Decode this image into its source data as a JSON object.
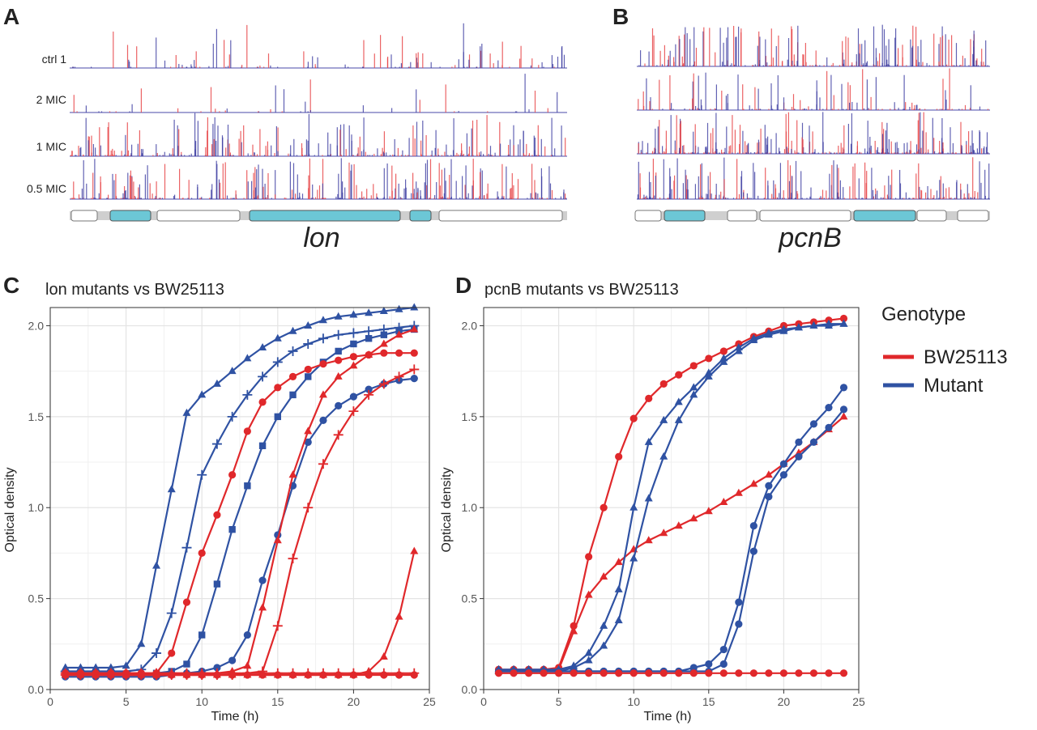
{
  "panels": {
    "A": {
      "letter": "A",
      "gene": "lon",
      "tracks": [
        "ctrl 1",
        "2 MIC",
        "1 MIC",
        "0.5 MIC"
      ]
    },
    "B": {
      "letter": "B",
      "gene": "pcnB"
    },
    "C": {
      "letter": "C"
    },
    "D": {
      "letter": "D"
    }
  },
  "legend": {
    "title": "Genotype",
    "items": [
      {
        "label": "BW25113",
        "color": "#e0282b"
      },
      {
        "label": "Mutant",
        "color": "#2f52a3"
      }
    ]
  },
  "colors": {
    "red": "#e0282b",
    "blue": "#2f52a3",
    "annotation_fill": "#6cc7d6"
  },
  "chart_data": [
    {
      "id": "C",
      "type": "line",
      "title": "lon mutants vs BW25113",
      "xlabel": "Time (h)",
      "ylabel": "Optical density",
      "xlim": [
        0,
        25
      ],
      "ylim": [
        0,
        2.1
      ],
      "xticks": [
        0,
        5,
        10,
        15,
        20,
        25
      ],
      "yticks": [
        0.0,
        0.5,
        1.0,
        1.5,
        2.0
      ],
      "x": [
        1,
        2,
        3,
        4,
        5,
        6,
        7,
        8,
        9,
        10,
        11,
        12,
        13,
        14,
        15,
        16,
        17,
        18,
        19,
        20,
        21,
        22,
        23,
        24
      ],
      "series": [
        {
          "genotype": "Mutant",
          "marker": "triangle",
          "values": [
            0.12,
            0.12,
            0.12,
            0.12,
            0.13,
            0.25,
            0.68,
            1.1,
            1.52,
            1.62,
            1.68,
            1.75,
            1.82,
            1.88,
            1.93,
            1.97,
            2.0,
            2.03,
            2.05,
            2.06,
            2.07,
            2.08,
            2.09,
            2.1
          ]
        },
        {
          "genotype": "Mutant",
          "marker": "cross",
          "values": [
            0.1,
            0.1,
            0.1,
            0.1,
            0.1,
            0.11,
            0.2,
            0.42,
            0.78,
            1.18,
            1.35,
            1.5,
            1.62,
            1.72,
            1.8,
            1.86,
            1.9,
            1.93,
            1.95,
            1.96,
            1.97,
            1.98,
            1.99,
            2.0
          ]
        },
        {
          "genotype": "Mutant",
          "marker": "square",
          "values": [
            0.08,
            0.08,
            0.08,
            0.08,
            0.08,
            0.08,
            0.09,
            0.1,
            0.14,
            0.3,
            0.58,
            0.88,
            1.12,
            1.34,
            1.5,
            1.62,
            1.72,
            1.8,
            1.86,
            1.9,
            1.93,
            1.95,
            1.97,
            1.98
          ]
        },
        {
          "genotype": "Mutant",
          "marker": "circle",
          "values": [
            0.07,
            0.07,
            0.07,
            0.07,
            0.07,
            0.07,
            0.07,
            0.08,
            0.09,
            0.1,
            0.12,
            0.16,
            0.3,
            0.6,
            0.85,
            1.12,
            1.36,
            1.48,
            1.56,
            1.61,
            1.65,
            1.68,
            1.7,
            1.71
          ]
        },
        {
          "genotype": "BW25113",
          "marker": "circle",
          "values": [
            0.09,
            0.09,
            0.09,
            0.09,
            0.09,
            0.09,
            0.09,
            0.2,
            0.48,
            0.75,
            0.96,
            1.18,
            1.42,
            1.58,
            1.66,
            1.72,
            1.76,
            1.79,
            1.81,
            1.83,
            1.84,
            1.85,
            1.85,
            1.85
          ]
        },
        {
          "genotype": "BW25113",
          "marker": "triangle",
          "values": [
            0.09,
            0.09,
            0.09,
            0.09,
            0.09,
            0.09,
            0.09,
            0.09,
            0.09,
            0.09,
            0.09,
            0.1,
            0.13,
            0.45,
            0.82,
            1.18,
            1.42,
            1.62,
            1.72,
            1.78,
            1.84,
            1.9,
            1.95,
            1.98
          ]
        },
        {
          "genotype": "BW25113",
          "marker": "cross",
          "values": [
            0.08,
            0.08,
            0.08,
            0.08,
            0.08,
            0.08,
            0.08,
            0.08,
            0.08,
            0.08,
            0.08,
            0.08,
            0.09,
            0.1,
            0.35,
            0.72,
            1.0,
            1.24,
            1.4,
            1.53,
            1.62,
            1.68,
            1.72,
            1.76
          ]
        },
        {
          "genotype": "BW25113",
          "marker": "triangle",
          "values": [
            0.08,
            0.08,
            0.08,
            0.08,
            0.08,
            0.08,
            0.08,
            0.08,
            0.08,
            0.08,
            0.08,
            0.08,
            0.08,
            0.08,
            0.08,
            0.08,
            0.08,
            0.08,
            0.08,
            0.08,
            0.1,
            0.18,
            0.4,
            0.76
          ]
        },
        {
          "genotype": "BW25113",
          "marker": "cross",
          "values": [
            0.09,
            0.09,
            0.09,
            0.09,
            0.09,
            0.09,
            0.09,
            0.09,
            0.09,
            0.09,
            0.09,
            0.09,
            0.09,
            0.09,
            0.09,
            0.09,
            0.09,
            0.09,
            0.09,
            0.09,
            0.09,
            0.09,
            0.09,
            0.09
          ]
        },
        {
          "genotype": "BW25113",
          "marker": "circle",
          "values": [
            0.08,
            0.08,
            0.08,
            0.08,
            0.08,
            0.08,
            0.08,
            0.08,
            0.08,
            0.08,
            0.08,
            0.08,
            0.08,
            0.08,
            0.08,
            0.08,
            0.08,
            0.08,
            0.08,
            0.08,
            0.08,
            0.08,
            0.08,
            0.08
          ]
        }
      ]
    },
    {
      "id": "D",
      "type": "line",
      "title": "pcnB mutants vs BW25113",
      "xlabel": "Time (h)",
      "ylabel": "Optical density",
      "xlim": [
        0,
        25
      ],
      "ylim": [
        0,
        2.1
      ],
      "xticks": [
        0,
        5,
        10,
        15,
        20,
        25
      ],
      "yticks": [
        0.0,
        0.5,
        1.0,
        1.5,
        2.0
      ],
      "x": [
        1,
        2,
        3,
        4,
        5,
        6,
        7,
        8,
        9,
        10,
        11,
        12,
        13,
        14,
        15,
        16,
        17,
        18,
        19,
        20,
        21,
        22,
        23,
        24
      ],
      "series": [
        {
          "genotype": "BW25113",
          "marker": "circle",
          "values": [
            0.11,
            0.11,
            0.11,
            0.11,
            0.12,
            0.35,
            0.73,
            1.0,
            1.28,
            1.49,
            1.6,
            1.68,
            1.73,
            1.78,
            1.82,
            1.86,
            1.9,
            1.94,
            1.97,
            2.0,
            2.01,
            2.02,
            2.03,
            2.04
          ]
        },
        {
          "genotype": "BW25113",
          "marker": "triangle",
          "values": [
            0.1,
            0.1,
            0.1,
            0.1,
            0.11,
            0.32,
            0.52,
            0.62,
            0.7,
            0.77,
            0.82,
            0.86,
            0.9,
            0.94,
            0.98,
            1.03,
            1.08,
            1.13,
            1.18,
            1.24,
            1.3,
            1.36,
            1.43,
            1.5
          ]
        },
        {
          "genotype": "Mutant",
          "marker": "triangle",
          "values": [
            0.11,
            0.11,
            0.11,
            0.11,
            0.11,
            0.13,
            0.2,
            0.35,
            0.55,
            1.0,
            1.36,
            1.48,
            1.58,
            1.66,
            1.74,
            1.82,
            1.88,
            1.93,
            1.96,
            1.98,
            1.99,
            2.0,
            2.01,
            2.01
          ]
        },
        {
          "genotype": "Mutant",
          "marker": "triangle",
          "values": [
            0.1,
            0.1,
            0.1,
            0.1,
            0.1,
            0.12,
            0.16,
            0.24,
            0.38,
            0.72,
            1.05,
            1.28,
            1.48,
            1.62,
            1.72,
            1.8,
            1.86,
            1.92,
            1.95,
            1.97,
            1.99,
            2.0,
            2.0,
            2.01
          ]
        },
        {
          "genotype": "Mutant",
          "marker": "circle",
          "values": [
            0.1,
            0.1,
            0.1,
            0.1,
            0.1,
            0.1,
            0.1,
            0.1,
            0.1,
            0.1,
            0.1,
            0.1,
            0.1,
            0.12,
            0.14,
            0.22,
            0.48,
            0.9,
            1.12,
            1.24,
            1.36,
            1.46,
            1.55,
            1.66
          ]
        },
        {
          "genotype": "Mutant",
          "marker": "circle",
          "values": [
            0.1,
            0.1,
            0.1,
            0.1,
            0.1,
            0.1,
            0.1,
            0.1,
            0.1,
            0.1,
            0.1,
            0.1,
            0.1,
            0.1,
            0.1,
            0.14,
            0.36,
            0.76,
            1.06,
            1.18,
            1.28,
            1.36,
            1.44,
            1.54
          ]
        },
        {
          "genotype": "BW25113",
          "marker": "circle",
          "values": [
            0.09,
            0.09,
            0.09,
            0.09,
            0.09,
            0.09,
            0.09,
            0.09,
            0.09,
            0.09,
            0.09,
            0.09,
            0.09,
            0.09,
            0.09,
            0.09,
            0.09,
            0.09,
            0.09,
            0.09,
            0.09,
            0.09,
            0.09,
            0.09
          ]
        }
      ]
    }
  ]
}
